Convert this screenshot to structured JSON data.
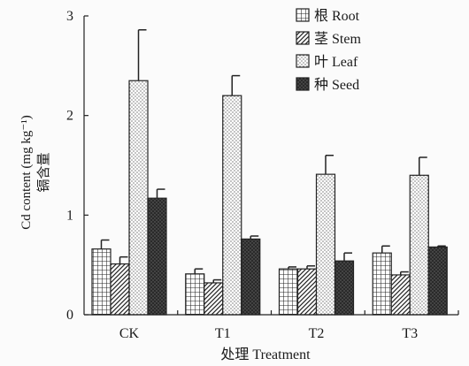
{
  "chart_data": {
    "type": "bar",
    "title": "",
    "categories": [
      "CK",
      "T1",
      "T2",
      "T3"
    ],
    "series": [
      {
        "name": "根 Root",
        "pattern": "grid",
        "values": [
          0.66,
          0.41,
          0.46,
          0.62
        ],
        "errors": [
          0.09,
          0.05,
          0.02,
          0.07
        ]
      },
      {
        "name": "茎 Stem",
        "pattern": "hatch",
        "values": [
          0.51,
          0.32,
          0.46,
          0.4
        ],
        "errors": [
          0.07,
          0.03,
          0.03,
          0.03
        ]
      },
      {
        "name": "叶 Leaf",
        "pattern": "dots",
        "values": [
          2.35,
          2.2,
          1.41,
          1.4
        ],
        "errors": [
          0.51,
          0.2,
          0.19,
          0.18
        ]
      },
      {
        "name": "种 Seed",
        "pattern": "dark",
        "values": [
          1.17,
          0.76,
          0.54,
          0.68
        ],
        "errors": [
          0.09,
          0.03,
          0.08,
          0.01
        ]
      }
    ],
    "xlabel": "处理 Treatment",
    "ylabel_line1": "Cd content (mg kg⁻¹)",
    "ylabel_line2": "镉含量",
    "ylim": [
      0,
      3
    ],
    "yticks": [
      "0",
      "1",
      "2",
      "3"
    ],
    "legend_position": "top-right",
    "grid": false,
    "error_bars": "upper"
  }
}
